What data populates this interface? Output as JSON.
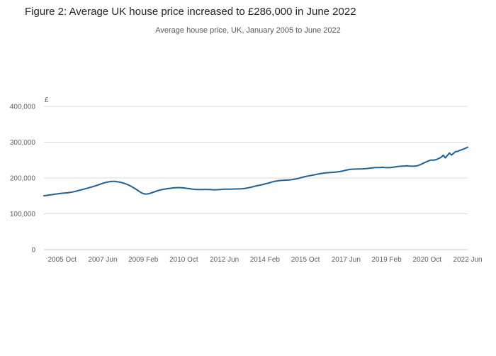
{
  "figure": {
    "title": "Figure 2: Average UK house price increased to £286,000 in June 2022",
    "subtitle": "Average house price, UK, January 2005 to June 2022"
  },
  "chart_data": {
    "type": "line",
    "title": "Figure 2: Average UK house price increased to £286,000 in June 2022",
    "subtitle": "Average house price, UK, January 2005 to June 2022",
    "unit_label": "£",
    "x_start": "2005 Jan",
    "x_end": "2022 Jun",
    "x_tick_labels": [
      "2005 Oct",
      "2007 Jun",
      "2009 Feb",
      "2010 Oct",
      "2012 Jun",
      "2014 Feb",
      "2015 Oct",
      "2017 Jun",
      "2019 Feb",
      "2020 Oct",
      "2022 Jun"
    ],
    "x_tick_indices": [
      9,
      29,
      49,
      69,
      89,
      109,
      129,
      149,
      169,
      189,
      209
    ],
    "ylim": [
      0,
      400000
    ],
    "y_ticks": [
      0,
      100000,
      200000,
      300000,
      400000
    ],
    "grid": true,
    "legend": "none",
    "line_color": "#206095",
    "grid_color": "#d9d9d9",
    "axis_text_color": "#5f5f5f",
    "series": [
      {
        "name": "Average house price (UK)",
        "values": [
          150500,
          151000,
          151800,
          152600,
          153500,
          154400,
          155300,
          156100,
          156800,
          157400,
          157900,
          158400,
          159000,
          159800,
          160800,
          162000,
          163400,
          164900,
          166400,
          167900,
          169400,
          170900,
          172400,
          174000,
          175600,
          177400,
          179300,
          181200,
          183100,
          185000,
          186700,
          188200,
          189400,
          190200,
          190600,
          190400,
          189800,
          188900,
          187700,
          186200,
          184300,
          182100,
          179600,
          176700,
          173500,
          170100,
          166500,
          162700,
          159100,
          156400,
          155200,
          155400,
          156600,
          158400,
          160400,
          162400,
          164300,
          166000,
          167400,
          168500,
          169400,
          170200,
          171000,
          171800,
          172400,
          172900,
          173200,
          173100,
          172700,
          172200,
          171500,
          170800,
          170000,
          169200,
          168600,
          168200,
          168000,
          167900,
          168000,
          168200,
          168200,
          168000,
          167700,
          167400,
          167200,
          167300,
          167600,
          168000,
          168400,
          168700,
          168900,
          169000,
          169000,
          169100,
          169300,
          169600,
          169600,
          169700,
          170100,
          170800,
          171700,
          172800,
          174100,
          175500,
          176900,
          178200,
          179400,
          180600,
          181900,
          183300,
          184800,
          186400,
          188000,
          189500,
          190800,
          191900,
          192700,
          193200,
          193500,
          193800,
          194200,
          194700,
          195300,
          196100,
          197100,
          198300,
          199700,
          201200,
          202700,
          204100,
          205300,
          206300,
          207300,
          208400,
          209600,
          210800,
          211900,
          212900,
          213700,
          214400,
          214900,
          215300,
          215700,
          216100,
          216600,
          217200,
          218000,
          219100,
          220400,
          221800,
          223000,
          223900,
          224500,
          224800,
          225000,
          225300,
          225400,
          225600,
          225900,
          226400,
          227000,
          227700,
          228400,
          228900,
          229200,
          229400,
          229600,
          229900,
          229300,
          228900,
          228900,
          229300,
          229900,
          230700,
          231600,
          232400,
          232900,
          233200,
          233500,
          234100,
          233400,
          233100,
          232900,
          233100,
          234100,
          235900,
          238300,
          240900,
          243600,
          246200,
          248400,
          250100,
          249800,
          250600,
          252600,
          255300,
          258300,
          263600,
          256200,
          262900,
          269900,
          264100,
          268700,
          273500,
          274300,
          276800,
          278900,
          280900,
          283300,
          286000
        ]
      }
    ]
  }
}
